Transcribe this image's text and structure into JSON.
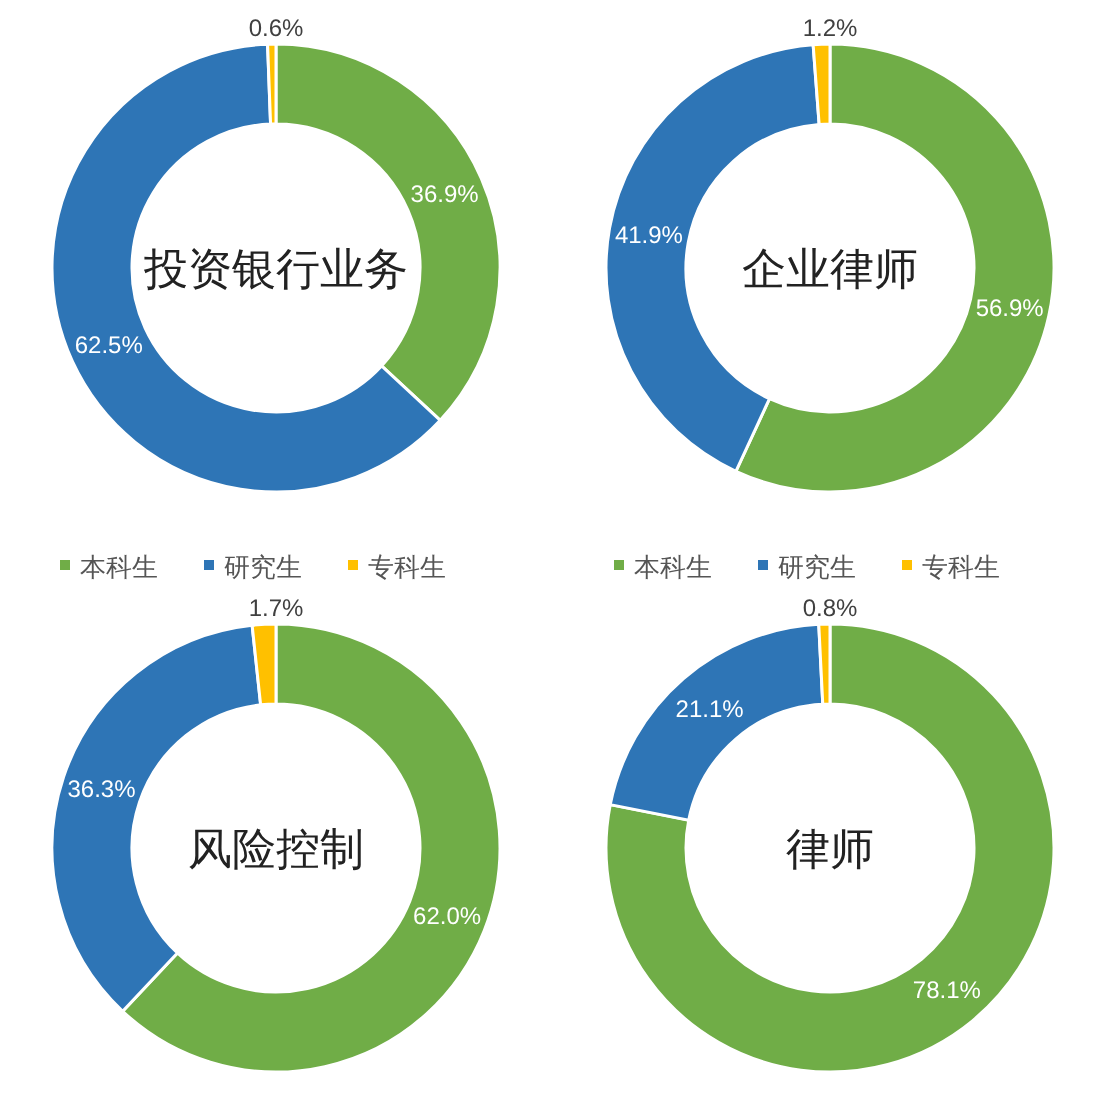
{
  "chart_data": [
    {
      "type": "donut",
      "title": "投资银行业务",
      "categories": [
        "本科生",
        "研究生",
        "专科生"
      ],
      "values": [
        36.9,
        62.5,
        0.6
      ],
      "value_labels": [
        "36.9%",
        "62.5%",
        "0.6%"
      ],
      "colors": [
        "#70ad47",
        "#2e75b6",
        "#ffc000"
      ],
      "legend": "bottom"
    },
    {
      "type": "donut",
      "title": "企业律师",
      "categories": [
        "本科生",
        "研究生",
        "专科生"
      ],
      "values": [
        56.9,
        41.9,
        1.2
      ],
      "value_labels": [
        "56.9%",
        "41.9%",
        "1.2%"
      ],
      "colors": [
        "#70ad47",
        "#2e75b6",
        "#ffc000"
      ],
      "legend": "bottom"
    },
    {
      "type": "donut",
      "title": "风险控制",
      "categories": [
        null,
        null,
        null
      ],
      "values": [
        62.0,
        36.3,
        1.7
      ],
      "value_labels": [
        "62.0%",
        "36.3%",
        "1.7%"
      ],
      "colors": [
        "#70ad47",
        "#2e75b6",
        "#ffc000"
      ]
    },
    {
      "type": "donut",
      "title": "律师",
      "categories": [
        null,
        null,
        null
      ],
      "values": [
        78.1,
        21.1,
        0.8
      ],
      "value_labels": [
        "78.1%",
        "21.1%",
        "0.8%"
      ],
      "colors": [
        "#70ad47",
        "#2e75b6",
        "#ffc000"
      ]
    }
  ]
}
